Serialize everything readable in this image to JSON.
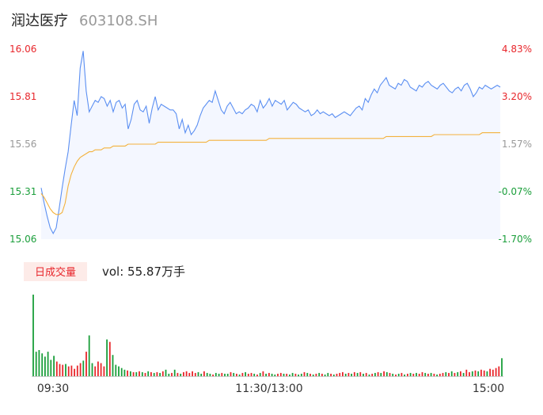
{
  "header": {
    "name": "润达医疗",
    "code": "603108.SH"
  },
  "colors": {
    "up": "#e8262b",
    "down": "#1a9e3a",
    "neutral": "#999999",
    "price_line": "#5b8ff2",
    "avg_line": "#f3b23d",
    "area_fill": "#f4f7ff",
    "vol_tag_bg": "#fdebe8"
  },
  "chart_data": {
    "type": "line",
    "prev_close": 15.32,
    "price_ticks": [
      "16.06",
      "15.81",
      "15.56",
      "15.31",
      "15.06"
    ],
    "pct_ticks": [
      "4.83%",
      "3.20%",
      "1.57%",
      "-0.07%",
      "-1.70%"
    ],
    "ylim": [
      15.06,
      16.06
    ],
    "time_labels": [
      "09:30",
      "11:30/13:00",
      "15:00"
    ],
    "volume_tag": "日成交量",
    "volume_text": "vol: 55.87万手",
    "series": [
      {
        "values": [
          15.33,
          15.25,
          15.18,
          15.12,
          15.09,
          15.12,
          15.22,
          15.33,
          15.43,
          15.52,
          15.66,
          15.79,
          15.71,
          15.96,
          16.05,
          15.84,
          15.73,
          15.76,
          15.79,
          15.78,
          15.81,
          15.8,
          15.76,
          15.79,
          15.73,
          15.78,
          15.79,
          15.75,
          15.77,
          15.64,
          15.69,
          15.77,
          15.79,
          15.74,
          15.73,
          15.76,
          15.67,
          15.75,
          15.81,
          15.74,
          15.77,
          15.76,
          15.75,
          15.74,
          15.74,
          15.72,
          15.64,
          15.69,
          15.62,
          15.66,
          15.61,
          15.63,
          15.66,
          15.71,
          15.75,
          15.77,
          15.79,
          15.78,
          15.84,
          15.79,
          15.74,
          15.72,
          15.76,
          15.78,
          15.75,
          15.72,
          15.73,
          15.72,
          15.74,
          15.75,
          15.77,
          15.76,
          15.73,
          15.79,
          15.75,
          15.77,
          15.8,
          15.76,
          15.79,
          15.78,
          15.77,
          15.79,
          15.74,
          15.76,
          15.78,
          15.77,
          15.75,
          15.74,
          15.73,
          15.74,
          15.71,
          15.72,
          15.74,
          15.72,
          15.73,
          15.72,
          15.71,
          15.72,
          15.7,
          15.71,
          15.72,
          15.73,
          15.72,
          15.71,
          15.73,
          15.75,
          15.76,
          15.74,
          15.8,
          15.78,
          15.82,
          15.85,
          15.83,
          15.87,
          15.89,
          15.91,
          15.87,
          15.86,
          15.85,
          15.88,
          15.87,
          15.9,
          15.89,
          15.86,
          15.85,
          15.84,
          15.87,
          15.86,
          15.88,
          15.89,
          15.87,
          15.86,
          15.85,
          15.87,
          15.88,
          15.86,
          15.84,
          15.83,
          15.85,
          15.86,
          15.84,
          15.87,
          15.88,
          15.85,
          15.81,
          15.83,
          15.86,
          15.85,
          15.87,
          15.86,
          15.85,
          15.86,
          15.87,
          15.86
        ],
        "avg": [
          15.3,
          15.28,
          15.25,
          15.22,
          15.2,
          15.19,
          15.19,
          15.2,
          15.25,
          15.34,
          15.4,
          15.44,
          15.47,
          15.49,
          15.5,
          15.51,
          15.52,
          15.52,
          15.53,
          15.53,
          15.53,
          15.54,
          15.54,
          15.54,
          15.55,
          15.55,
          15.55,
          15.55,
          15.55,
          15.56,
          15.56,
          15.56,
          15.56,
          15.56,
          15.56,
          15.56,
          15.56,
          15.56,
          15.56,
          15.57,
          15.57,
          15.57,
          15.57,
          15.57,
          15.57,
          15.57,
          15.57,
          15.57,
          15.57,
          15.57,
          15.57,
          15.57,
          15.57,
          15.57,
          15.57,
          15.57,
          15.58,
          15.58,
          15.58,
          15.58,
          15.58,
          15.58,
          15.58,
          15.58,
          15.58,
          15.58,
          15.58,
          15.58,
          15.58,
          15.58,
          15.58,
          15.58,
          15.58,
          15.58,
          15.58,
          15.58,
          15.59,
          15.59,
          15.59,
          15.59,
          15.59,
          15.59,
          15.59,
          15.59,
          15.59,
          15.59,
          15.59,
          15.59,
          15.59,
          15.59,
          15.59,
          15.59,
          15.59,
          15.59,
          15.59,
          15.59,
          15.59,
          15.59,
          15.59,
          15.59,
          15.59,
          15.59,
          15.59,
          15.59,
          15.59,
          15.59,
          15.59,
          15.59,
          15.59,
          15.59,
          15.59,
          15.59,
          15.59,
          15.59,
          15.59,
          15.6,
          15.6,
          15.6,
          15.6,
          15.6,
          15.6,
          15.6,
          15.6,
          15.6,
          15.6,
          15.6,
          15.6,
          15.6,
          15.6,
          15.6,
          15.6,
          15.61,
          15.61,
          15.61,
          15.61,
          15.61,
          15.61,
          15.61,
          15.61,
          15.61,
          15.61,
          15.61,
          15.61,
          15.61,
          15.61,
          15.61,
          15.61,
          15.62,
          15.62,
          15.62,
          15.62,
          15.62,
          15.62,
          15.62
        ]
      }
    ],
    "volume": [
      100,
      30,
      32,
      28,
      24,
      30,
      20,
      25,
      18,
      15,
      14,
      15,
      12,
      13,
      9,
      13,
      16,
      19,
      30,
      50,
      16,
      12,
      18,
      16,
      12,
      45,
      42,
      26,
      14,
      12,
      10,
      8,
      7,
      6,
      5,
      5,
      6,
      5,
      4,
      6,
      5,
      4,
      5,
      4,
      6,
      8,
      3,
      4,
      8,
      4,
      3,
      5,
      6,
      4,
      6,
      4,
      5,
      3,
      6,
      4,
      3,
      2,
      4,
      3,
      4,
      3,
      3,
      5,
      4,
      3,
      2,
      4,
      5,
      3,
      4,
      3,
      2,
      4,
      6,
      3,
      4,
      3,
      2,
      3,
      4,
      3,
      3,
      2,
      4,
      3,
      2,
      3,
      5,
      4,
      3,
      2,
      3,
      4,
      3,
      2,
      4,
      3,
      2,
      3,
      4,
      5,
      3,
      4,
      3,
      5,
      4,
      5,
      3,
      4,
      2,
      3,
      4,
      5,
      4,
      6,
      5,
      4,
      3,
      2,
      3,
      4,
      2,
      3,
      4,
      3,
      4,
      3,
      5,
      4,
      3,
      4,
      3,
      2,
      3,
      4,
      5,
      4,
      6,
      4,
      5,
      6,
      4,
      8,
      5,
      6,
      7,
      6,
      8,
      7,
      6,
      9,
      8,
      10,
      12,
      22
    ],
    "volume_dir": [
      "d",
      "d",
      "d",
      "d",
      "d",
      "d",
      "d",
      "d",
      "u",
      "u",
      "u",
      "d",
      "u",
      "u",
      "u",
      "u",
      "u",
      "d",
      "u",
      "d",
      "d",
      "u",
      "u",
      "u",
      "u",
      "d",
      "u",
      "d",
      "d",
      "d",
      "d",
      "d",
      "u",
      "d",
      "u",
      "d",
      "u",
      "d",
      "u",
      "d",
      "u",
      "d",
      "u",
      "d",
      "u",
      "d",
      "d",
      "u",
      "d",
      "u",
      "d",
      "u",
      "u",
      "u",
      "u",
      "u",
      "d",
      "d",
      "u",
      "d",
      "d",
      "u",
      "d",
      "d",
      "u",
      "d",
      "d",
      "u",
      "d",
      "u",
      "d",
      "u",
      "d",
      "u",
      "u",
      "d",
      "u",
      "d",
      "u",
      "d",
      "u",
      "d",
      "d",
      "u",
      "u",
      "d",
      "u",
      "d",
      "d",
      "u",
      "d",
      "d",
      "u",
      "d",
      "u",
      "d",
      "u",
      "d",
      "u",
      "d",
      "d",
      "u",
      "d",
      "u",
      "u",
      "u",
      "d",
      "u",
      "d",
      "u",
      "d",
      "u",
      "d",
      "u",
      "d",
      "u",
      "d",
      "u",
      "d",
      "u",
      "d",
      "u",
      "d",
      "u",
      "d",
      "u",
      "d",
      "u",
      "d",
      "u",
      "d",
      "u",
      "u",
      "d",
      "u",
      "d",
      "u",
      "d",
      "u",
      "u",
      "d",
      "u",
      "d",
      "u",
      "d",
      "u",
      "d",
      "u",
      "u",
      "d",
      "u",
      "d",
      "u",
      "u",
      "d",
      "u",
      "u",
      "u",
      "u",
      "d"
    ]
  }
}
